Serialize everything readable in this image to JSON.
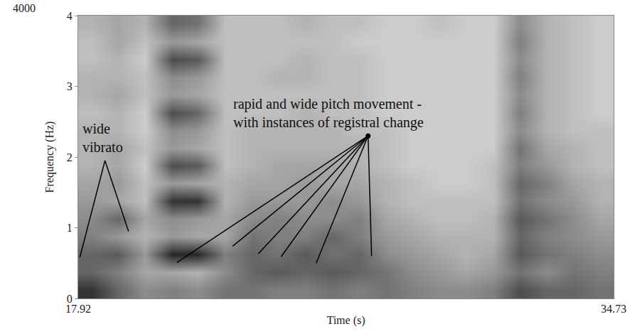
{
  "chart_data": {
    "type": "heatmap",
    "x_label": "Time (s)",
    "y_label": "Frequency (Hz)",
    "y_top_label": "4000",
    "xlim": [
      17.92,
      34.73
    ],
    "xticks": [
      17.92,
      34.73
    ],
    "ylim": [
      0,
      4
    ],
    "yticks": [
      0,
      1,
      2,
      3,
      4
    ],
    "grid": false,
    "color": "#000000",
    "zlim": [
      0,
      1
    ],
    "x": [
      18.34,
      19.18,
      20.02,
      20.86,
      21.7,
      22.54,
      23.38,
      24.22,
      25.06,
      25.91,
      26.75,
      27.59,
      28.43,
      29.27,
      30.11,
      30.95,
      31.79,
      32.63,
      33.47,
      34.31
    ],
    "y": [
      0.125,
      0.375,
      0.625,
      0.875,
      1.125,
      1.375,
      1.625,
      1.875,
      2.125,
      2.375,
      2.625,
      2.875,
      3.125,
      3.375,
      3.625,
      3.875
    ],
    "z": [
      [
        0.8,
        0.6,
        0.6,
        0.5,
        0.45,
        0.4,
        0.35,
        0.3,
        0.3,
        0.3,
        0.25,
        0.3,
        0.3,
        0.25,
        0.25,
        0.3
      ],
      [
        0.6,
        0.5,
        0.65,
        0.4,
        0.6,
        0.35,
        0.4,
        0.35,
        0.35,
        0.3,
        0.3,
        0.35,
        0.3,
        0.3,
        0.35,
        0.35
      ],
      [
        0.45,
        0.35,
        0.4,
        0.3,
        0.35,
        0.25,
        0.25,
        0.2,
        0.25,
        0.2,
        0.2,
        0.25,
        0.25,
        0.2,
        0.25,
        0.3
      ],
      [
        0.5,
        0.35,
        0.85,
        0.4,
        0.45,
        0.8,
        0.4,
        0.7,
        0.4,
        0.45,
        0.7,
        0.4,
        0.45,
        0.7,
        0.4,
        0.6
      ],
      [
        0.45,
        0.3,
        0.85,
        0.35,
        0.4,
        0.8,
        0.35,
        0.65,
        0.35,
        0.4,
        0.6,
        0.35,
        0.4,
        0.65,
        0.35,
        0.55
      ],
      [
        0.55,
        0.45,
        0.5,
        0.35,
        0.35,
        0.3,
        0.3,
        0.25,
        0.25,
        0.25,
        0.25,
        0.25,
        0.25,
        0.25,
        0.25,
        0.25
      ],
      [
        0.55,
        0.6,
        0.6,
        0.55,
        0.45,
        0.4,
        0.35,
        0.3,
        0.3,
        0.3,
        0.25,
        0.25,
        0.25,
        0.25,
        0.25,
        0.25
      ],
      [
        0.5,
        0.65,
        0.55,
        0.5,
        0.5,
        0.4,
        0.35,
        0.35,
        0.3,
        0.3,
        0.25,
        0.25,
        0.3,
        0.25,
        0.25,
        0.25
      ],
      [
        0.5,
        0.6,
        0.65,
        0.5,
        0.45,
        0.4,
        0.4,
        0.35,
        0.3,
        0.3,
        0.3,
        0.25,
        0.3,
        0.3,
        0.25,
        0.3
      ],
      [
        0.55,
        0.65,
        0.55,
        0.6,
        0.45,
        0.45,
        0.35,
        0.35,
        0.3,
        0.3,
        0.25,
        0.25,
        0.25,
        0.25,
        0.25,
        0.25
      ],
      [
        0.5,
        0.6,
        0.6,
        0.5,
        0.5,
        0.4,
        0.35,
        0.3,
        0.3,
        0.25,
        0.25,
        0.25,
        0.25,
        0.25,
        0.2,
        0.25
      ],
      [
        0.55,
        0.55,
        0.45,
        0.4,
        0.35,
        0.3,
        0.3,
        0.25,
        0.25,
        0.25,
        0.2,
        0.2,
        0.2,
        0.2,
        0.2,
        0.2
      ],
      [
        0.5,
        0.45,
        0.4,
        0.35,
        0.3,
        0.25,
        0.25,
        0.2,
        0.2,
        0.2,
        0.2,
        0.2,
        0.2,
        0.2,
        0.2,
        0.2
      ],
      [
        0.45,
        0.4,
        0.35,
        0.3,
        0.25,
        0.25,
        0.2,
        0.2,
        0.2,
        0.2,
        0.2,
        0.2,
        0.2,
        0.2,
        0.2,
        0.25
      ],
      [
        0.45,
        0.35,
        0.3,
        0.3,
        0.25,
        0.25,
        0.2,
        0.2,
        0.2,
        0.2,
        0.2,
        0.2,
        0.2,
        0.2,
        0.2,
        0.2
      ],
      [
        0.5,
        0.4,
        0.35,
        0.3,
        0.3,
        0.25,
        0.25,
        0.25,
        0.2,
        0.2,
        0.2,
        0.2,
        0.2,
        0.2,
        0.2,
        0.2
      ],
      [
        0.7,
        0.55,
        0.65,
        0.6,
        0.65,
        0.55,
        0.6,
        0.5,
        0.55,
        0.45,
        0.5,
        0.45,
        0.5,
        0.45,
        0.5,
        0.45
      ],
      [
        0.6,
        0.45,
        0.55,
        0.5,
        0.55,
        0.45,
        0.5,
        0.4,
        0.35,
        0.3,
        0.3,
        0.3,
        0.3,
        0.3,
        0.3,
        0.3
      ],
      [
        0.6,
        0.55,
        0.5,
        0.45,
        0.45,
        0.4,
        0.35,
        0.3,
        0.3,
        0.25,
        0.25,
        0.25,
        0.25,
        0.25,
        0.25,
        0.25
      ],
      [
        0.55,
        0.5,
        0.45,
        0.4,
        0.35,
        0.3,
        0.3,
        0.25,
        0.25,
        0.25,
        0.2,
        0.2,
        0.2,
        0.2,
        0.2,
        0.2
      ]
    ],
    "annotations": [
      {
        "lines": [
          "wide",
          "vibrato"
        ],
        "x": 18.68,
        "y": 2.27,
        "from": [
          18.76,
          1.95
        ],
        "targets": [
          [
            17.97,
            0.58
          ],
          [
            19.5,
            0.95
          ]
        ]
      },
      {
        "lines": [
          "rapid and wide pitch movement -",
          "with instances of registral change"
        ],
        "x": 25.78,
        "y": 2.62,
        "from": [
          27.02,
          2.3
        ],
        "marker": "circle",
        "targets": [
          [
            21.02,
            0.51
          ],
          [
            22.77,
            0.74
          ],
          [
            23.57,
            0.63
          ],
          [
            24.29,
            0.59
          ],
          [
            25.39,
            0.5
          ],
          [
            27.13,
            0.6
          ]
        ]
      }
    ]
  }
}
